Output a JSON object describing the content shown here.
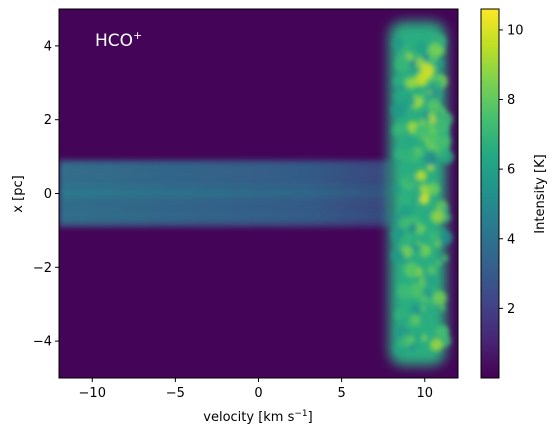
{
  "chart_data": {
    "type": "heatmap",
    "title": "",
    "annotation": "HCO",
    "annotation_sup": "+",
    "xlabel": {
      "main": "velocity [km s",
      "sup": "−1",
      "end": "]"
    },
    "ylabel": "x [pc]",
    "xlim": [
      -12,
      12
    ],
    "ylim": [
      -5,
      5
    ],
    "xticks": [
      {
        "value": -10,
        "label": "−10"
      },
      {
        "value": -5,
        "label": "−5"
      },
      {
        "value": 0,
        "label": "0"
      },
      {
        "value": 5,
        "label": "5"
      },
      {
        "value": 10,
        "label": "10"
      }
    ],
    "yticks": [
      {
        "value": 4,
        "label": "4"
      },
      {
        "value": 2,
        "label": "2"
      },
      {
        "value": 0,
        "label": "0"
      },
      {
        "value": -2,
        "label": "−2"
      },
      {
        "value": -4,
        "label": "−4"
      }
    ],
    "colormap": "viridis",
    "colorbar": {
      "label": "Intensity [K]",
      "range": [
        0,
        10.6
      ],
      "ticks": [
        {
          "value": 2,
          "label": "2"
        },
        {
          "value": 4,
          "label": "4"
        },
        {
          "value": 6,
          "label": "6"
        },
        {
          "value": 8,
          "label": "8"
        },
        {
          "value": 10,
          "label": "10"
        }
      ]
    },
    "background_intensity": 0.1,
    "features": [
      {
        "name": "bright-region",
        "x_range": [
          7.5,
          12
        ],
        "x_center": 10,
        "y_range": [
          -4.5,
          4.5
        ],
        "peak_intensity": 10.5
      },
      {
        "name": "horizontal-band",
        "x_range": [
          -12,
          8
        ],
        "y_range": [
          -0.9,
          0.9
        ],
        "peak_intensity": 5.0
      }
    ]
  }
}
